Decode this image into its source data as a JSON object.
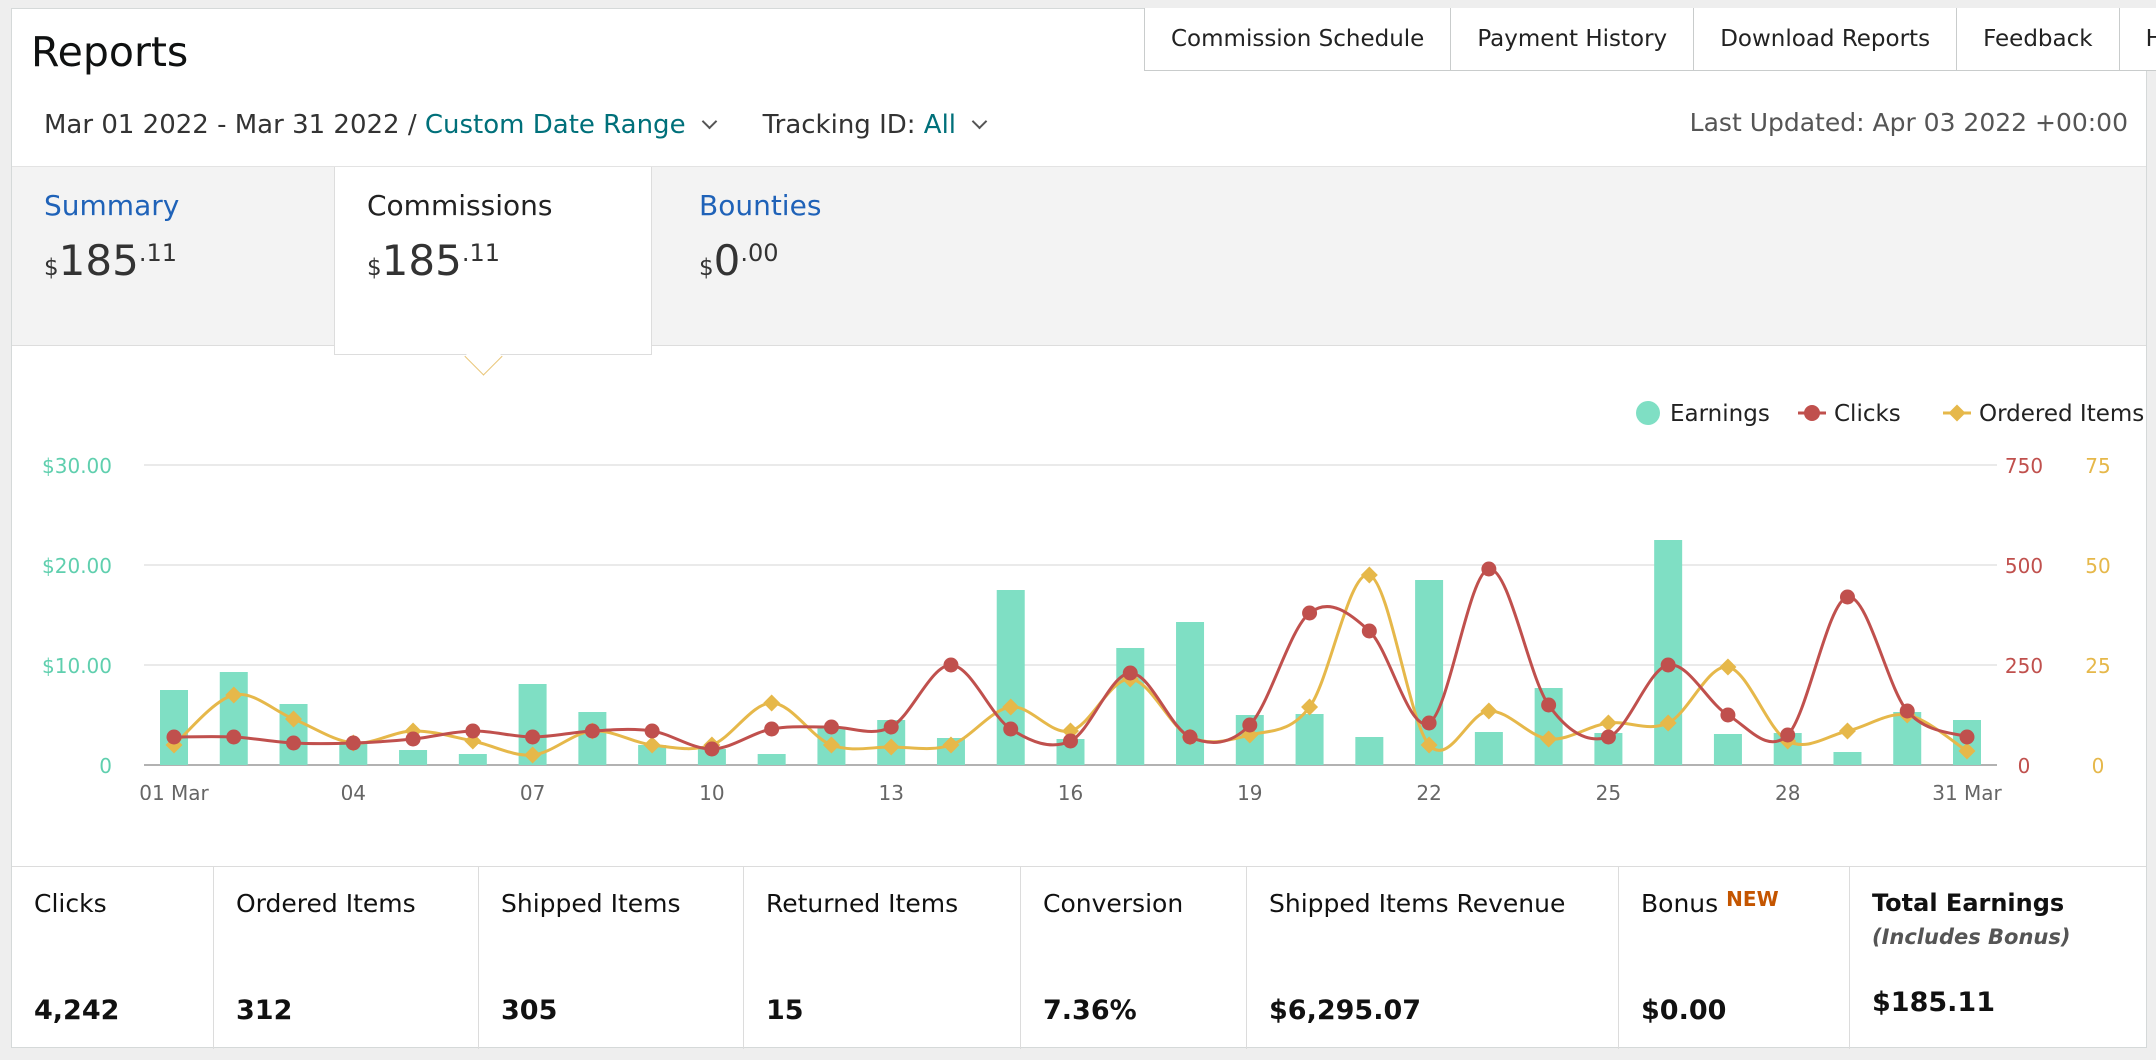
{
  "header": {
    "title": "Reports",
    "nav": [
      "Commission Schedule",
      "Payment History",
      "Download Reports",
      "Feedback",
      "Help"
    ]
  },
  "filters": {
    "date_range": "Mar 01 2022 - Mar 31 2022 /",
    "date_mode": "Custom Date Range",
    "tracking_label": "Tracking ID:",
    "tracking_value": "All"
  },
  "last_updated": "Last Updated: Apr 03 2022 +00:00",
  "tabs": {
    "summary": {
      "label": "Summary",
      "currency": "$",
      "amount": "185",
      "cents": ".11"
    },
    "commissions": {
      "label": "Commissions",
      "currency": "$",
      "amount": "185",
      "cents": ".11"
    },
    "bounties": {
      "label": "Bounties",
      "currency": "$",
      "amount": "0",
      "cents": ".00"
    }
  },
  "colors": {
    "earnings": "#7fdfc4",
    "clicks": "#c0504d",
    "ordered": "#e6b84a",
    "teal_axis": "#5fcfae"
  },
  "chart_data": {
    "type": "bar",
    "categories": [
      "01 Mar",
      "02",
      "03",
      "04",
      "05",
      "06",
      "07",
      "08",
      "09",
      "10",
      "11",
      "12",
      "13",
      "14",
      "15",
      "16",
      "17",
      "18",
      "19",
      "20",
      "21",
      "22",
      "23",
      "24",
      "25",
      "26",
      "27",
      "28",
      "29",
      "30",
      "31 Mar"
    ],
    "x_tick_labels": [
      "01 Mar",
      "04",
      "07",
      "10",
      "13",
      "16",
      "19",
      "22",
      "25",
      "28",
      "31 Mar"
    ],
    "legend": [
      "Earnings",
      "Clicks",
      "Ordered Items"
    ],
    "legend_position": "top-right",
    "grid": true,
    "series": [
      {
        "name": "Earnings",
        "type": "bar",
        "axis": "left",
        "values": [
          7.5,
          9.3,
          6.1,
          2.2,
          1.5,
          1.1,
          8.1,
          5.3,
          2.0,
          1.6,
          1.1,
          3.7,
          4.5,
          2.7,
          17.5,
          2.6,
          11.7,
          14.3,
          5.0,
          5.1,
          2.8,
          18.5,
          3.3,
          7.7,
          3.2,
          22.5,
          3.1,
          3.2,
          1.3,
          5.3,
          4.5
        ]
      },
      {
        "name": "Clicks",
        "type": "line",
        "axis": "right1",
        "values": [
          70,
          70,
          55,
          55,
          65,
          85,
          70,
          85,
          85,
          40,
          90,
          95,
          95,
          250,
          90,
          60,
          230,
          70,
          100,
          380,
          335,
          105,
          490,
          150,
          70,
          250,
          125,
          75,
          420,
          135,
          70
        ]
      },
      {
        "name": "Ordered Items",
        "type": "line",
        "axis": "right2",
        "values": [
          5,
          17.5,
          11.5,
          5.5,
          8.5,
          6,
          2.5,
          8.5,
          5,
          5,
          15.5,
          5,
          4.5,
          5,
          14.5,
          8.5,
          21.5,
          7,
          7.5,
          14.5,
          47.5,
          5,
          13.5,
          6.5,
          10.5,
          10.5,
          24.5,
          6,
          8.5,
          12.5,
          3.5
        ]
      }
    ],
    "axes": {
      "left": {
        "ticks": [
          "0",
          "$10.00",
          "$20.00",
          "$30.00"
        ],
        "min": 0,
        "max": 30
      },
      "right1": {
        "ticks": [
          "0",
          "250",
          "500",
          "750"
        ],
        "min": 0,
        "max": 750
      },
      "right2": {
        "ticks": [
          "0",
          "25",
          "50",
          "75"
        ],
        "min": 0,
        "max": 75
      }
    }
  },
  "metrics": [
    {
      "label": "Clicks",
      "value": "4,242"
    },
    {
      "label": "Ordered Items",
      "value": "312"
    },
    {
      "label": "Shipped Items",
      "value": "305"
    },
    {
      "label": "Returned Items",
      "value": "15"
    },
    {
      "label": "Conversion",
      "value": "7.36%"
    },
    {
      "label": "Shipped Items Revenue",
      "value": "$6,295.07"
    },
    {
      "label": "Bonus",
      "badge": "NEW",
      "value": "$0.00"
    },
    {
      "label": "Total Earnings",
      "sub": "(Includes Bonus)",
      "value": "$185.11"
    }
  ]
}
